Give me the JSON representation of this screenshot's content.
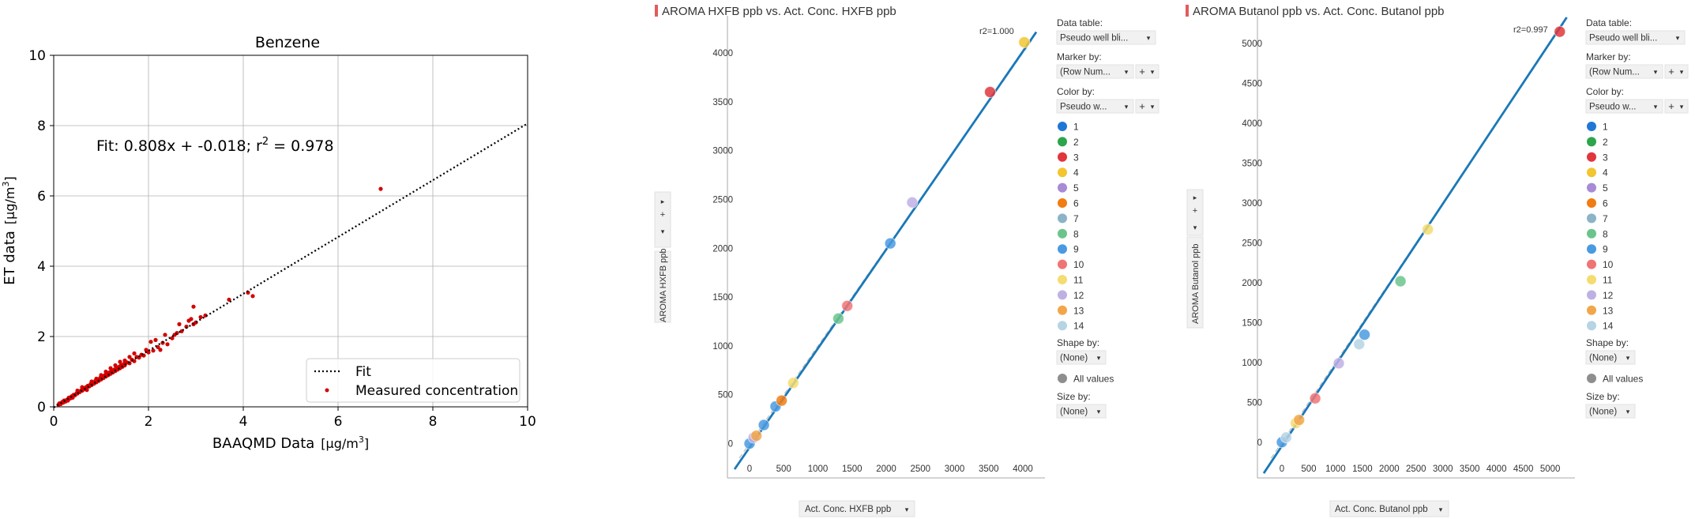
{
  "chart_data": [
    {
      "type": "scatter",
      "title": "Benzene",
      "xlabel": "BAAQMD Data",
      "xlabel_unit": "[μg/m",
      "ylabel": "ET data",
      "ylabel_unit": "[μg/m",
      "unit_exp": "3",
      "unit_close": "]",
      "xlim": [
        0,
        10
      ],
      "ylim": [
        0,
        10
      ],
      "xticks": [
        "0",
        "2",
        "4",
        "6",
        "8",
        "10"
      ],
      "yticks": [
        "0",
        "2",
        "4",
        "6",
        "8",
        "10"
      ],
      "grid": true,
      "fit_label_main": "Fit: 0.808x + -0.018; r",
      "fit_label_exp": "2",
      "fit_label_tail": " = 0.978",
      "fit": {
        "slope": 0.808,
        "intercept": -0.018
      },
      "legend_position": "bottom-right",
      "legend": [
        "Fit",
        "Measured concentration"
      ],
      "series_color": "#d40000",
      "fit_color": "#000000",
      "points": [
        [
          0.1,
          0.06
        ],
        [
          0.12,
          0.1
        ],
        [
          0.15,
          0.08
        ],
        [
          0.18,
          0.14
        ],
        [
          0.2,
          0.12
        ],
        [
          0.22,
          0.18
        ],
        [
          0.25,
          0.15
        ],
        [
          0.28,
          0.2
        ],
        [
          0.3,
          0.22
        ],
        [
          0.32,
          0.26
        ],
        [
          0.35,
          0.24
        ],
        [
          0.38,
          0.3
        ],
        [
          0.4,
          0.3
        ],
        [
          0.42,
          0.34
        ],
        [
          0.45,
          0.33
        ],
        [
          0.48,
          0.38
        ],
        [
          0.5,
          0.38
        ],
        [
          0.52,
          0.42
        ],
        [
          0.55,
          0.42
        ],
        [
          0.58,
          0.47
        ],
        [
          0.6,
          0.46
        ],
        [
          0.62,
          0.52
        ],
        [
          0.65,
          0.5
        ],
        [
          0.68,
          0.56
        ],
        [
          0.7,
          0.55
        ],
        [
          0.72,
          0.6
        ],
        [
          0.75,
          0.58
        ],
        [
          0.78,
          0.65
        ],
        [
          0.8,
          0.62
        ],
        [
          0.82,
          0.7
        ],
        [
          0.85,
          0.66
        ],
        [
          0.88,
          0.74
        ],
        [
          0.9,
          0.7
        ],
        [
          0.92,
          0.78
        ],
        [
          0.95,
          0.74
        ],
        [
          0.98,
          0.82
        ],
        [
          1.0,
          0.78
        ],
        [
          1.02,
          0.86
        ],
        [
          1.05,
          0.82
        ],
        [
          1.08,
          0.9
        ],
        [
          1.1,
          0.86
        ],
        [
          1.12,
          0.95
        ],
        [
          1.15,
          0.9
        ],
        [
          1.18,
          0.98
        ],
        [
          1.2,
          0.94
        ],
        [
          1.22,
          1.02
        ],
        [
          1.25,
          0.98
        ],
        [
          1.28,
          1.06
        ],
        [
          1.3,
          1.02
        ],
        [
          1.32,
          1.1
        ],
        [
          1.35,
          1.06
        ],
        [
          1.38,
          1.14
        ],
        [
          1.4,
          1.1
        ],
        [
          1.42,
          1.18
        ],
        [
          1.45,
          1.14
        ],
        [
          1.48,
          1.22
        ],
        [
          1.5,
          1.18
        ],
        [
          1.55,
          1.26
        ],
        [
          1.6,
          1.24
        ],
        [
          1.65,
          1.34
        ],
        [
          1.7,
          1.3
        ],
        [
          1.75,
          1.42
        ],
        [
          1.8,
          1.4
        ],
        [
          1.85,
          1.48
        ],
        [
          1.9,
          1.46
        ],
        [
          0.3,
          0.18
        ],
        [
          0.5,
          0.46
        ],
        [
          0.7,
          0.48
        ],
        [
          0.9,
          0.8
        ],
        [
          1.1,
          1.0
        ],
        [
          1.3,
          1.18
        ],
        [
          1.5,
          1.32
        ],
        [
          1.7,
          1.52
        ],
        [
          0.6,
          0.56
        ],
        [
          0.8,
          0.72
        ],
        [
          1.0,
          0.9
        ],
        [
          1.2,
          1.1
        ],
        [
          1.4,
          1.28
        ],
        [
          1.6,
          1.42
        ],
        [
          0.4,
          0.26
        ],
        [
          2.0,
          1.55
        ],
        [
          2.1,
          1.6
        ],
        [
          2.2,
          1.7
        ],
        [
          2.25,
          1.62
        ],
        [
          2.3,
          1.82
        ],
        [
          2.4,
          1.78
        ],
        [
          2.5,
          1.95
        ],
        [
          2.55,
          2.05
        ],
        [
          2.6,
          2.1
        ],
        [
          2.7,
          2.15
        ],
        [
          2.8,
          2.28
        ],
        [
          2.85,
          2.45
        ],
        [
          2.9,
          2.5
        ],
        [
          2.95,
          2.35
        ],
        [
          3.0,
          2.4
        ],
        [
          3.1,
          2.55
        ],
        [
          3.2,
          2.6
        ],
        [
          2.95,
          2.85
        ],
        [
          3.7,
          3.05
        ],
        [
          4.1,
          3.25
        ],
        [
          4.2,
          3.15
        ],
        [
          6.9,
          6.2
        ],
        [
          2.35,
          2.05
        ],
        [
          2.65,
          2.35
        ],
        [
          2.05,
          1.85
        ],
        [
          1.95,
          1.62
        ],
        [
          2.15,
          1.9
        ]
      ]
    },
    {
      "type": "scatter",
      "title": "AROMA HXFB ppb vs. Act. Conc. HXFB ppb",
      "xlabel": "Act. Conc. HXFB ppb",
      "ylabel": "AROMA HXFB ppb",
      "xlim": [
        -150,
        4150
      ],
      "ylim": [
        -150,
        4300
      ],
      "xticks": [
        "0",
        "500",
        "1000",
        "1500",
        "2000",
        "2500",
        "3000",
        "3500",
        "4000"
      ],
      "yticks": [
        "0",
        "500",
        "1000",
        "1500",
        "2000",
        "2500",
        "3000",
        "3500",
        "4000"
      ],
      "annotation": "r2=1.000",
      "fit": {
        "slope": 1.0,
        "intercept": 0
      },
      "points": [
        {
          "x": 0,
          "y": 0,
          "c": "9"
        },
        {
          "x": 60,
          "y": 60,
          "c": "12"
        },
        {
          "x": 100,
          "y": 80,
          "c": "13"
        },
        {
          "x": 210,
          "y": 190,
          "c": "9"
        },
        {
          "x": 380,
          "y": 380,
          "c": "9"
        },
        {
          "x": 470,
          "y": 440,
          "c": "6"
        },
        {
          "x": 640,
          "y": 620,
          "c": "11"
        },
        {
          "x": 1300,
          "y": 1280,
          "c": "8"
        },
        {
          "x": 1430,
          "y": 1410,
          "c": "10"
        },
        {
          "x": 2060,
          "y": 2050,
          "c": "9"
        },
        {
          "x": 2380,
          "y": 2470,
          "c": "12"
        },
        {
          "x": 3520,
          "y": 3600,
          "c": "3"
        },
        {
          "x": 4020,
          "y": 4110,
          "c": "4"
        }
      ]
    },
    {
      "type": "scatter",
      "title": "AROMA Butanol ppb vs. Act. Conc. Butanol ppb",
      "xlabel": "Act. Conc. Butanol ppb",
      "ylabel": "AROMA Butanol ppb",
      "xlim": [
        -250,
        5300
      ],
      "ylim": [
        -200,
        5250
      ],
      "xticks": [
        "0",
        "500",
        "1000",
        "1500",
        "2000",
        "2500",
        "3000",
        "3500",
        "4000",
        "4500",
        "5000"
      ],
      "yticks": [
        "0",
        "500",
        "1000",
        "1500",
        "2000",
        "2500",
        "3000",
        "3500",
        "4000",
        "4500",
        "5000"
      ],
      "annotation": "r2=0.997",
      "fit": {
        "slope": 1.0,
        "intercept": 0
      },
      "points": [
        {
          "x": 0,
          "y": 0,
          "c": "9"
        },
        {
          "x": 80,
          "y": 60,
          "c": "14"
        },
        {
          "x": 260,
          "y": 240,
          "c": "11"
        },
        {
          "x": 320,
          "y": 280,
          "c": "13"
        },
        {
          "x": 620,
          "y": 550,
          "c": "10"
        },
        {
          "x": 1060,
          "y": 990,
          "c": "12"
        },
        {
          "x": 1440,
          "y": 1230,
          "c": "14"
        },
        {
          "x": 1540,
          "y": 1350,
          "c": "9"
        },
        {
          "x": 2210,
          "y": 2020,
          "c": "8"
        },
        {
          "x": 2720,
          "y": 2670,
          "c": "11"
        },
        {
          "x": 5180,
          "y": 5150,
          "c": "3"
        }
      ]
    }
  ],
  "side_panel": {
    "data_table_label": "Data table:",
    "data_table_value": "Pseudo well bli...",
    "marker_by_label": "Marker by:",
    "marker_by_value": "(Row Num...",
    "color_by_label": "Color by:",
    "color_by_value": "Pseudo w...",
    "shape_by_label": "Shape by:",
    "shape_by_value": "(None)",
    "all_values_label": "All values",
    "size_by_label": "Size by:",
    "size_by_value": "(None)",
    "plus": "+",
    "legend_items": [
      {
        "label": "1",
        "color": "#1f77d4"
      },
      {
        "label": "2",
        "color": "#2ca54c"
      },
      {
        "label": "3",
        "color": "#e0363c"
      },
      {
        "label": "4",
        "color": "#f2c531"
      },
      {
        "label": "5",
        "color": "#a78bd4"
      },
      {
        "label": "6",
        "color": "#f07c13"
      },
      {
        "label": "7",
        "color": "#8cb3c6"
      },
      {
        "label": "8",
        "color": "#6cc48c"
      },
      {
        "label": "9",
        "color": "#4a9ae0"
      },
      {
        "label": "10",
        "color": "#f07474"
      },
      {
        "label": "11",
        "color": "#f5dc70"
      },
      {
        "label": "12",
        "color": "#bfb0e4"
      },
      {
        "label": "13",
        "color": "#f2a64a"
      },
      {
        "label": "14",
        "color": "#b6d4e4"
      }
    ]
  },
  "colors": {
    "fit_line": "#1a78b8",
    "identity_line": "#bdbdbd",
    "accent": "#e35b5b"
  }
}
